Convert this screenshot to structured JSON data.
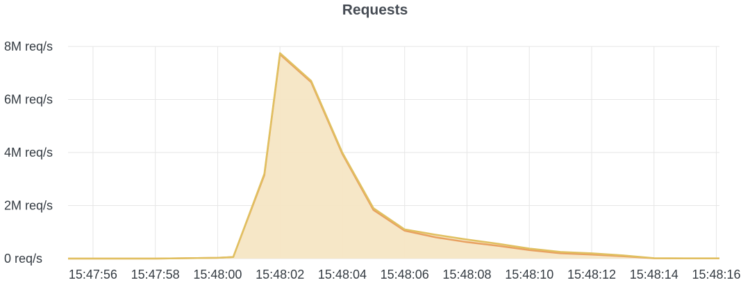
{
  "chart_data": {
    "type": "area",
    "title": "Requests",
    "xlabel": "",
    "ylabel": "",
    "x_tick_labels": [
      "15:47:56",
      "15:47:58",
      "15:48:00",
      "15:48:02",
      "15:48:04",
      "15:48:06",
      "15:48:08",
      "15:48:10",
      "15:48:12",
      "15:48:14",
      "15:48:16"
    ],
    "y_tick_labels": [
      "0 req/s",
      "2M req/s",
      "4M req/s",
      "6M req/s",
      "8M req/s"
    ],
    "y_tick_values": [
      0,
      2000000,
      4000000,
      6000000,
      8000000
    ],
    "x_range": [
      "15:47:55.2",
      "15:48:16.1"
    ],
    "ylim": [
      0,
      8000000
    ],
    "grid": true,
    "legend": "none",
    "x": [
      "15:47:55.2",
      "15:47:56",
      "15:47:58",
      "15:48:00",
      "15:48:00.5",
      "15:48:01.5",
      "15:48:02",
      "15:48:03",
      "15:48:04",
      "15:48:05",
      "15:48:06",
      "15:48:07",
      "15:48:08",
      "15:48:09",
      "15:48:10",
      "15:48:11",
      "15:48:12",
      "15:48:13",
      "15:48:14",
      "15:48:15",
      "15:48:16",
      "15:48:16.1"
    ],
    "series": [
      {
        "color": "#e0c060",
        "values": [
          0,
          0,
          0,
          30000,
          60000,
          3200000,
          7750000,
          6700000,
          4000000,
          1900000,
          1100000,
          900000,
          720000,
          560000,
          380000,
          250000,
          200000,
          120000,
          15000,
          10000,
          10000,
          10000
        ]
      },
      {
        "color": "#e8a060",
        "values": [
          0,
          0,
          0,
          30000,
          60000,
          3150000,
          7700000,
          6650000,
          3950000,
          1830000,
          1050000,
          800000,
          620000,
          480000,
          320000,
          200000,
          150000,
          90000,
          10000,
          8000,
          8000,
          8000
        ]
      }
    ],
    "fill_color": "#f5e6c4"
  }
}
